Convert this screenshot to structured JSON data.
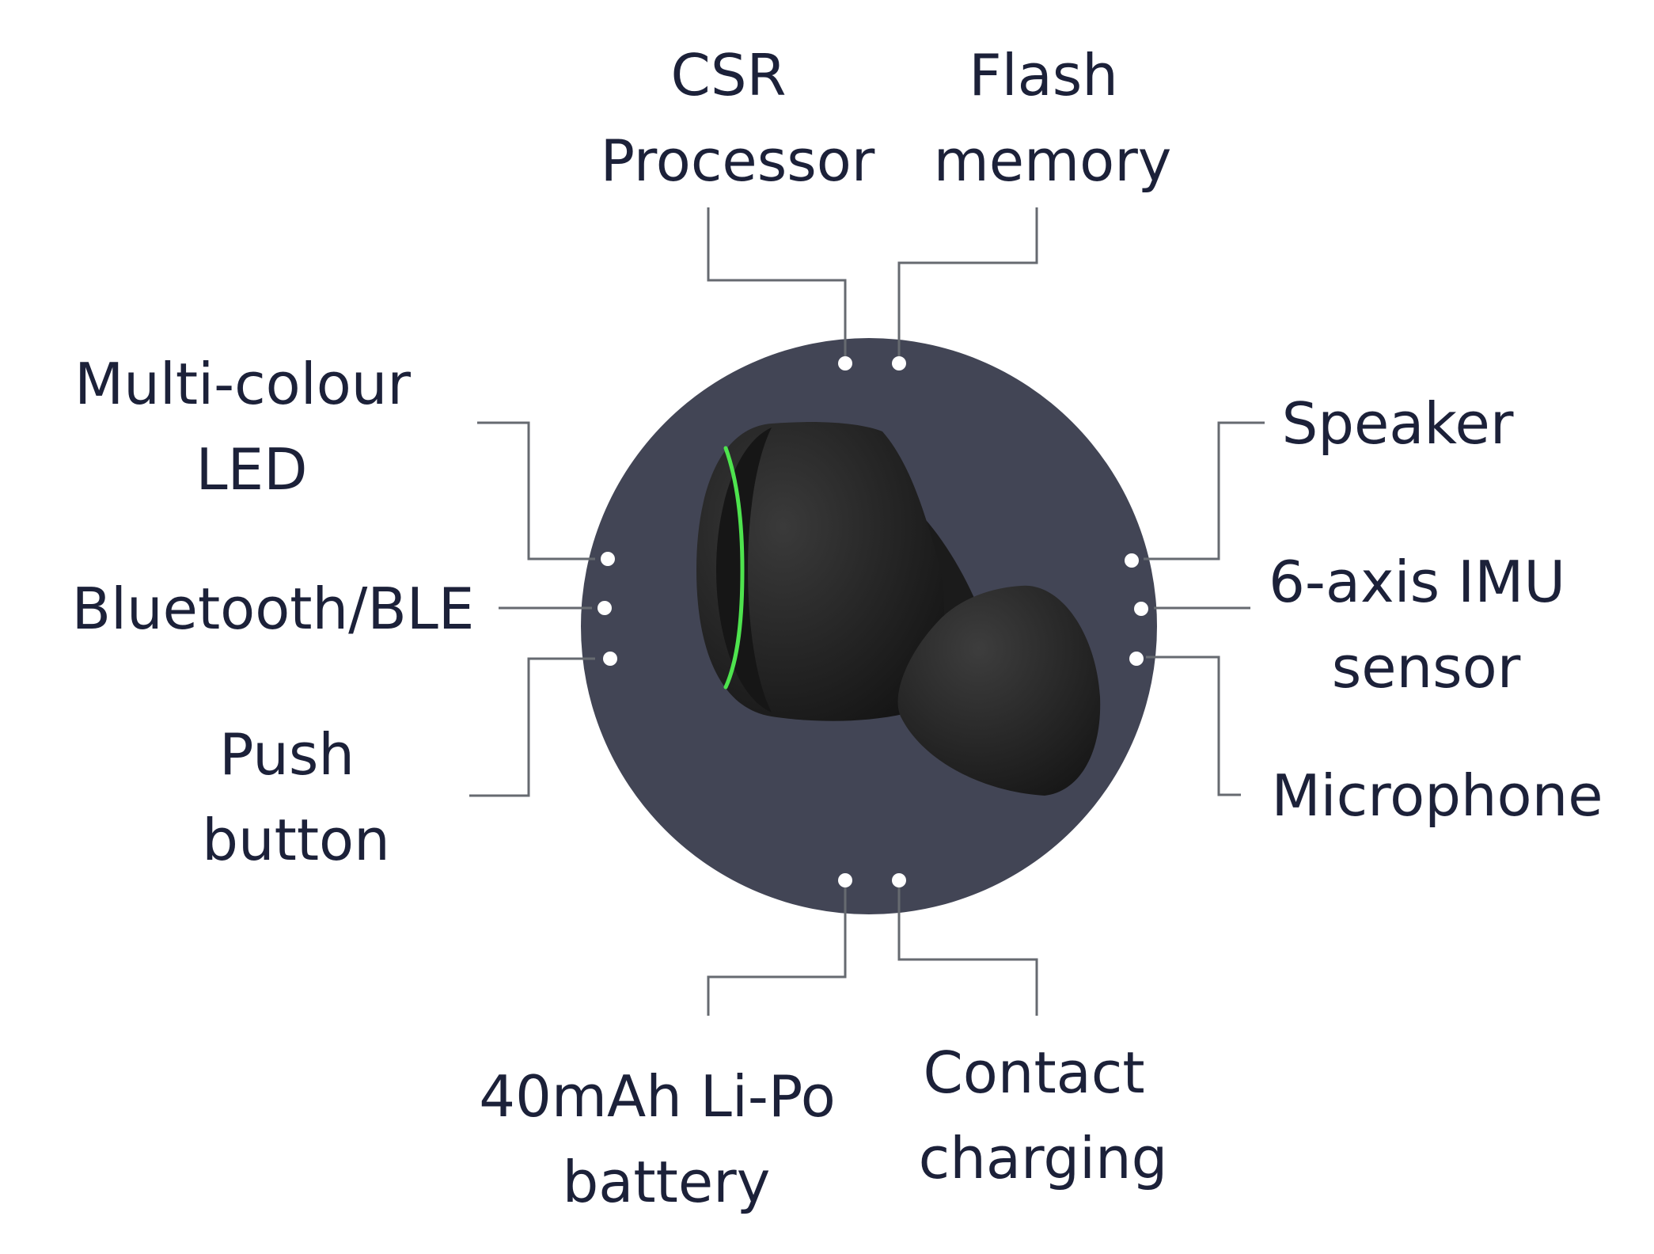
{
  "labels": {
    "csr_processor": [
      "CSR",
      "Processor"
    ],
    "flash_memory": [
      "Flash",
      "memory"
    ],
    "multi_colour_led": [
      "Multi-colour",
      "LED"
    ],
    "bluetooth_ble": [
      "Bluetooth/BLE"
    ],
    "push_button": [
      "Push",
      "button"
    ],
    "speaker": [
      "Speaker"
    ],
    "imu_sensor": [
      "6-axis IMU",
      "sensor"
    ],
    "microphone": [
      "Microphone"
    ],
    "battery": [
      "40mAh Li-Po",
      "battery"
    ],
    "contact_charging": [
      "Contact",
      "charging"
    ]
  },
  "colors": {
    "background": "#ffffff",
    "disc": "#424555",
    "earbud": "#1f1f1f",
    "led_ring": "#4ee34e",
    "text": "#1c2139",
    "leader_line": "#666a70",
    "connector_dot": "#ffffff"
  }
}
